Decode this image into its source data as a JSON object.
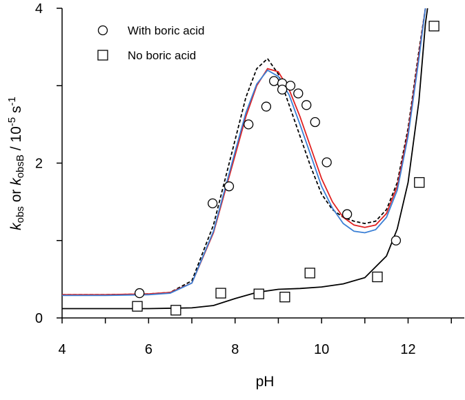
{
  "chart_data": {
    "type": "scatter",
    "xlabel": "pH",
    "ylabel": [
      "k",
      "obs",
      " or ",
      "k",
      "obsB",
      " / 10",
      "-5",
      " s",
      "-1"
    ],
    "xlim": [
      4,
      13.3
    ],
    "xticks": [
      4,
      6,
      8,
      10,
      12
    ],
    "xminorticks": [
      5,
      7,
      9,
      11,
      13
    ],
    "ylim": [
      0,
      4
    ],
    "yticks": [
      0,
      2,
      4
    ],
    "yminorticks": [
      1,
      3
    ],
    "legend": "top-left",
    "series": [
      {
        "name": "With boric acid",
        "mode": "markers",
        "marker": "circle",
        "color": "#000000",
        "x": [
          5.79,
          7.48,
          7.86,
          8.31,
          8.72,
          8.9,
          9.09,
          9.09,
          9.28,
          9.46,
          9.65,
          9.85,
          10.12,
          10.59,
          11.72
        ],
        "values": [
          0.32,
          1.48,
          1.7,
          2.5,
          2.73,
          3.06,
          3.03,
          2.95,
          3.0,
          2.9,
          2.75,
          2.53,
          2.01,
          1.34,
          1.0
        ]
      },
      {
        "name": "No boric acid",
        "mode": "markers",
        "marker": "square",
        "color": "#000000",
        "x": [
          5.74,
          6.63,
          7.67,
          8.55,
          9.15,
          9.73,
          11.29,
          12.26,
          12.6
        ],
        "values": [
          0.15,
          0.1,
          0.32,
          0.31,
          0.27,
          0.58,
          0.53,
          1.75,
          3.77
        ]
      },
      {
        "mode": "line",
        "dash": true,
        "color": "#000000",
        "x": [
          4,
          5,
          6,
          6.5,
          7,
          7.5,
          8,
          8.25,
          8.5,
          8.75,
          9,
          9.25,
          9.5,
          9.75,
          10,
          10.25,
          10.5,
          10.75,
          11,
          11.25,
          11.5,
          11.75,
          12,
          12.25,
          12.4
        ],
        "values": [
          0.3,
          0.3,
          0.31,
          0.33,
          0.48,
          1.2,
          2.3,
          2.85,
          3.22,
          3.35,
          3.15,
          2.75,
          2.35,
          1.95,
          1.6,
          1.4,
          1.3,
          1.25,
          1.22,
          1.25,
          1.4,
          1.75,
          2.45,
          3.45,
          4.0
        ]
      },
      {
        "mode": "line",
        "color": "#e02020",
        "x": [
          4,
          5,
          6,
          6.5,
          7,
          7.5,
          8,
          8.25,
          8.5,
          8.75,
          9,
          9.25,
          9.5,
          9.75,
          10,
          10.25,
          10.5,
          10.75,
          11,
          11.25,
          11.5,
          11.75,
          12,
          12.25,
          12.4
        ],
        "values": [
          0.3,
          0.3,
          0.31,
          0.33,
          0.45,
          1.1,
          2.1,
          2.6,
          3.0,
          3.22,
          3.18,
          2.95,
          2.6,
          2.2,
          1.8,
          1.5,
          1.3,
          1.2,
          1.17,
          1.2,
          1.35,
          1.7,
          2.4,
          3.4,
          4.0
        ]
      },
      {
        "mode": "line",
        "color": "#3a7fd5",
        "x": [
          4,
          5,
          6,
          6.5,
          7,
          7.5,
          8,
          8.25,
          8.5,
          8.75,
          9,
          9.25,
          9.5,
          9.75,
          10,
          10.25,
          10.5,
          10.75,
          11,
          11.25,
          11.5,
          11.75,
          12,
          12.25,
          12.4
        ],
        "values": [
          0.29,
          0.29,
          0.3,
          0.32,
          0.45,
          1.12,
          2.15,
          2.65,
          3.02,
          3.2,
          3.12,
          2.88,
          2.5,
          2.1,
          1.7,
          1.42,
          1.22,
          1.12,
          1.1,
          1.14,
          1.3,
          1.65,
          2.35,
          3.35,
          4.0
        ]
      },
      {
        "mode": "line",
        "color": "#000000",
        "x": [
          4,
          5,
          6,
          7,
          7.5,
          8,
          8.5,
          9,
          9.5,
          10,
          10.5,
          11,
          11.5,
          11.75,
          12,
          12.25,
          12.4,
          12.45
        ],
        "values": [
          0.12,
          0.12,
          0.12,
          0.13,
          0.16,
          0.25,
          0.33,
          0.37,
          0.38,
          0.4,
          0.44,
          0.52,
          0.8,
          1.15,
          1.75,
          2.8,
          3.8,
          4.0
        ]
      }
    ]
  }
}
